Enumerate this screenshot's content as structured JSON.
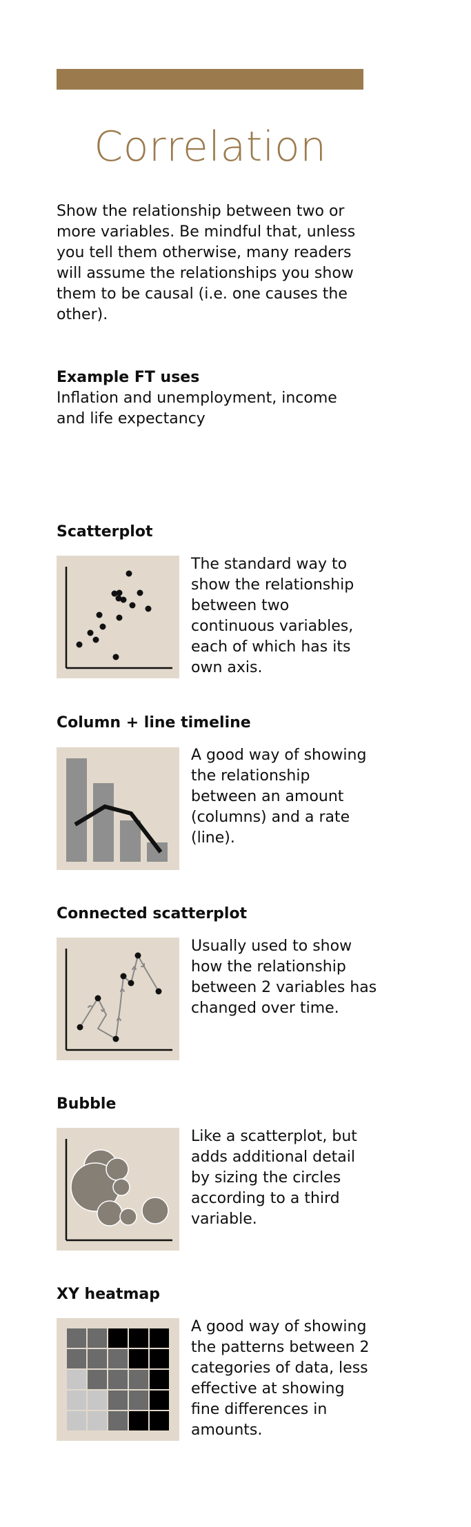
{
  "page": {
    "title": "Correlation",
    "intro": "Show the relationship between two or more variables. Be mindful that, unless you tell them otherwise, many readers will assume the relationships you show them to be causal (i.e. one causes the other).",
    "uses_heading": "Example FT uses",
    "uses_text": "Inflation and unemployment, income and life expectancy"
  },
  "colors": {
    "accent": "#9b7b4e",
    "icon_background": "#e2d9cc"
  },
  "charts": [
    {
      "title": "Scatterplot",
      "description": "The standard way to show the relationship between two continuous variables, each of which has its own axis."
    },
    {
      "title": "Column + line timeline",
      "description": "A good way of showing the relationship between an amount (columns) and a rate (line)."
    },
    {
      "title": "Connected scatterplot",
      "description": "Usually used to show how the relationship between 2 variables has changed over time."
    },
    {
      "title": "Bubble",
      "description": "Like a scatterplot, but adds additional detail by sizing the circles according to a third variable."
    },
    {
      "title": "XY heatmap",
      "description": "A good way of showing the patterns between 2 categories of data, less effective at showing fine differences in amounts."
    }
  ]
}
